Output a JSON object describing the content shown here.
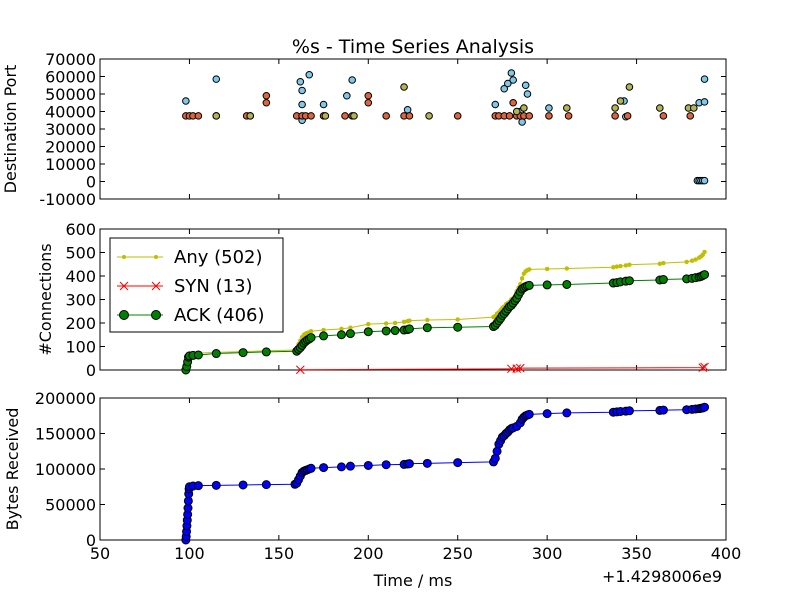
{
  "chart_data": [
    {
      "type": "scatter",
      "title": "%s - Time Series Analysis",
      "xlabel": "",
      "ylabel": "Destination Port",
      "xlim": [
        50,
        400
      ],
      "ylim": [
        -10000,
        70000
      ],
      "yticks": [
        -10000,
        0,
        10000,
        20000,
        30000,
        40000,
        50000,
        60000,
        70000
      ],
      "series": [
        {
          "color": "#7ec8e8",
          "points": [
            [
              98,
              46000
            ],
            [
              115,
              58500
            ],
            [
              162,
              57000
            ],
            [
              163,
              52000
            ],
            [
              163,
              44000
            ],
            [
              163,
              35000
            ],
            [
              167,
              61000
            ],
            [
              175,
              44000
            ],
            [
              188,
              49000
            ],
            [
              191,
              58000
            ],
            [
              222,
              41000
            ],
            [
              271,
              44000
            ],
            [
              276,
              53000
            ],
            [
              278,
              56000
            ],
            [
              280,
              62000
            ],
            [
              281,
              58000
            ],
            [
              285,
              40000
            ],
            [
              286,
              34000
            ],
            [
              288,
              55000
            ],
            [
              289,
              50000
            ],
            [
              301,
              42000
            ],
            [
              343,
              46000
            ],
            [
              344,
              37000
            ],
            [
              385,
              45000
            ],
            [
              388,
              58500
            ],
            [
              388,
              45500
            ],
            [
              384,
              500
            ],
            [
              385,
              500
            ],
            [
              386,
              500
            ],
            [
              387,
              500
            ],
            [
              388,
              500
            ]
          ]
        },
        {
          "color": "#d9663c",
          "points": [
            [
              98,
              37500
            ],
            [
              100,
              37500
            ],
            [
              102,
              37500
            ],
            [
              105,
              37500
            ],
            [
              115,
              37500
            ],
            [
              132,
              37500
            ],
            [
              134,
              37500
            ],
            [
              143,
              45000
            ],
            [
              143,
              49000
            ],
            [
              160,
              37500
            ],
            [
              163,
              37500
            ],
            [
              165,
              37500
            ],
            [
              168,
              37500
            ],
            [
              175,
              37500
            ],
            [
              187,
              37500
            ],
            [
              191,
              37500
            ],
            [
              200,
              45000
            ],
            [
              200,
              49000
            ],
            [
              210,
              37500
            ],
            [
              220,
              37500
            ],
            [
              223,
              37500
            ],
            [
              250,
              37500
            ],
            [
              271,
              37500
            ],
            [
              273,
              37500
            ],
            [
              276,
              37500
            ],
            [
              279,
              37500
            ],
            [
              281,
              45000
            ],
            [
              283,
              37500
            ],
            [
              285,
              37500
            ],
            [
              287,
              37500
            ],
            [
              290,
              37500
            ],
            [
              301,
              37500
            ],
            [
              312,
              37500
            ],
            [
              338,
              37500
            ],
            [
              345,
              37500
            ],
            [
              365,
              37500
            ],
            [
              380,
              37500
            ]
          ]
        },
        {
          "color": "#b2b256",
          "points": [
            [
              115,
              37500
            ],
            [
              134,
              37500
            ],
            [
              176,
              37500
            ],
            [
              192,
              37500
            ],
            [
              220,
              54000
            ],
            [
              234,
              37500
            ],
            [
              283,
              40000
            ],
            [
              287,
              42000
            ],
            [
              311,
              42000
            ],
            [
              338,
              42000
            ],
            [
              341,
              46000
            ],
            [
              346,
              54000
            ],
            [
              363,
              42000
            ],
            [
              379,
              42000
            ],
            [
              382,
              42000
            ]
          ]
        }
      ]
    },
    {
      "type": "line",
      "title": "",
      "xlabel": "",
      "ylabel": "#Connections",
      "xlim": [
        50,
        400
      ],
      "ylim": [
        0,
        600
      ],
      "yticks": [
        0,
        100,
        200,
        300,
        400,
        500,
        600
      ],
      "legend_position": "upper-left",
      "series": [
        {
          "name": "Any (502)",
          "color": "#bfbf00",
          "marker": "dot",
          "x": [
            98,
            98.5,
            99,
            99.5,
            100,
            102,
            105,
            115,
            130,
            143,
            160,
            161,
            162,
            163,
            164,
            165,
            166,
            167,
            168,
            175,
            185,
            190,
            200,
            210,
            215,
            220,
            222,
            223,
            233,
            250,
            270,
            271,
            272,
            273,
            274,
            275,
            276,
            277,
            278,
            279,
            280,
            281,
            282,
            283,
            284,
            285,
            286,
            287,
            288,
            289,
            290,
            300,
            311,
            337,
            339,
            341,
            344,
            346,
            363,
            365,
            378,
            381,
            383,
            385,
            386,
            387,
            388
          ],
          "y": [
            0,
            20,
            45,
            65,
            68,
            70,
            72,
            75,
            78,
            82,
            85,
            110,
            125,
            140,
            150,
            155,
            158,
            160,
            165,
            170,
            175,
            180,
            195,
            198,
            200,
            205,
            208,
            210,
            213,
            215,
            225,
            230,
            240,
            245,
            255,
            265,
            270,
            280,
            285,
            290,
            300,
            305,
            315,
            335,
            350,
            365,
            390,
            410,
            420,
            425,
            428,
            430,
            432,
            437,
            440,
            442,
            445,
            448,
            452,
            455,
            460,
            465,
            470,
            478,
            483,
            490,
            502
          ]
        },
        {
          "name": "SYN (13)",
          "color": "#ff0000",
          "marker": "x",
          "x": [
            162,
            280,
            283,
            285,
            387,
            388
          ],
          "y": [
            1,
            5,
            6,
            8,
            10,
            13
          ]
        },
        {
          "name": "ACK (406)",
          "color": "#008000",
          "marker": "circle",
          "x": [
            98,
            98.5,
            99,
            99.5,
            100,
            102,
            105,
            115,
            130,
            143,
            160,
            161,
            162,
            163,
            164,
            165,
            166,
            167,
            168,
            175,
            185,
            190,
            200,
            210,
            215,
            220,
            222,
            223,
            233,
            250,
            270,
            271,
            272,
            273,
            274,
            275,
            276,
            277,
            278,
            279,
            280,
            281,
            282,
            283,
            284,
            285,
            286,
            287,
            288,
            289,
            290,
            300,
            311,
            337,
            339,
            341,
            344,
            346,
            363,
            365,
            378,
            381,
            383,
            385,
            386,
            387,
            388
          ],
          "y": [
            0,
            15,
            35,
            55,
            60,
            62,
            64,
            70,
            74,
            77,
            80,
            88,
            95,
            105,
            115,
            122,
            128,
            132,
            138,
            145,
            150,
            155,
            163,
            166,
            168,
            170,
            172,
            175,
            180,
            182,
            185,
            190,
            200,
            210,
            220,
            232,
            240,
            250,
            260,
            270,
            275,
            285,
            295,
            305,
            320,
            333,
            345,
            350,
            355,
            358,
            360,
            362,
            364,
            370,
            372,
            375,
            378,
            380,
            383,
            385,
            388,
            390,
            393,
            396,
            398,
            402,
            406
          ]
        }
      ]
    },
    {
      "type": "line",
      "title": "",
      "xlabel": "Time / ms",
      "ylabel": "Bytes Received",
      "xlim": [
        50,
        400
      ],
      "ylim": [
        0,
        200000
      ],
      "xticks": [
        50,
        100,
        150,
        200,
        250,
        300,
        350,
        400
      ],
      "yticks": [
        0,
        50000,
        100000,
        150000,
        200000
      ],
      "x_offset_label": "+1.4298006e9",
      "series": [
        {
          "color": "#0000ff",
          "marker": "circle",
          "x": [
            98,
            98.2,
            98.4,
            98.6,
            98.8,
            99,
            99.2,
            99.4,
            99.6,
            99.8,
            100,
            102,
            105,
            115,
            130,
            143,
            159,
            160,
            161,
            162,
            163,
            164,
            165,
            166,
            167,
            168,
            175,
            185,
            190,
            200,
            210,
            220,
            222,
            223,
            233,
            250,
            270,
            271,
            272,
            273,
            274,
            275,
            276,
            277,
            278,
            279,
            280,
            281,
            283,
            285,
            286,
            287,
            288,
            289,
            290,
            300,
            311,
            337,
            339,
            341,
            344,
            346,
            363,
            365,
            378,
            381,
            383,
            385,
            386,
            387,
            388
          ],
          "y": [
            0,
            5000,
            12000,
            20000,
            28000,
            36000,
            45000,
            55000,
            65000,
            72000,
            75000,
            76000,
            76500,
            77000,
            77500,
            78000,
            78500,
            80000,
            85000,
            90000,
            95000,
            97000,
            98000,
            99000,
            100000,
            101000,
            102000,
            103000,
            104000,
            105000,
            106000,
            106500,
            107000,
            107500,
            108000,
            109000,
            110000,
            115000,
            125000,
            135000,
            140000,
            145000,
            147000,
            150000,
            152000,
            155000,
            157000,
            158000,
            160000,
            165000,
            170000,
            173000,
            175000,
            176000,
            177000,
            178000,
            179000,
            180000,
            180500,
            181000,
            181500,
            182000,
            182500,
            183000,
            183500,
            184000,
            184500,
            185000,
            185500,
            186000,
            187000
          ]
        }
      ]
    }
  ]
}
